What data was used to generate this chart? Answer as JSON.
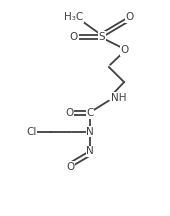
{
  "background_color": "#ffffff",
  "line_color": "#404040",
  "line_width": 1.3,
  "font_size": 7.5,
  "figsize": [
    1.7,
    2.16
  ],
  "dpi": 100,
  "xlim": [
    0,
    1
  ],
  "ylim": [
    0,
    1
  ]
}
